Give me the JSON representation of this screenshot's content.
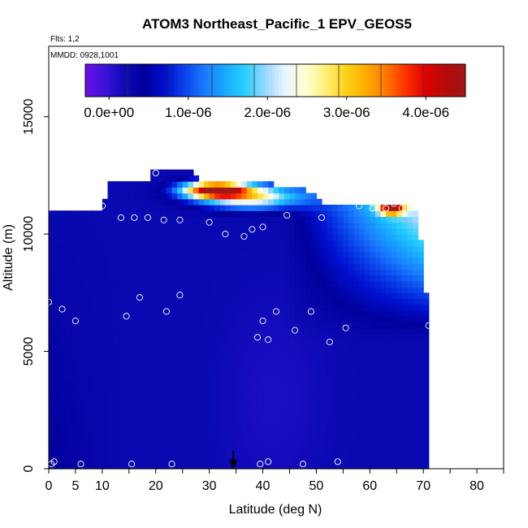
{
  "chart_data": {
    "type": "heatmap",
    "title": "ATOM3 Northeast_Pacific_1 EPV_GEOS5",
    "annotations": [
      "Flts: 1,2",
      "MMDD: 0928,1001"
    ],
    "xlabel": "Latitude (deg N)",
    "ylabel": "Altitude (m)",
    "xlim": [
      0,
      85
    ],
    "ylim": [
      0,
      18000
    ],
    "x_ticks": [
      0,
      5,
      10,
      20,
      30,
      40,
      50,
      60,
      70,
      80
    ],
    "y_ticks": [
      0,
      5000,
      10000,
      15000
    ],
    "colorbar": {
      "min": -3e-07,
      "max": 4.5e-06,
      "tick_values": [
        0,
        1e-06,
        2e-06,
        3e-06,
        4e-06
      ],
      "tick_labels": [
        "0.0e+00",
        "1.0e-06",
        "2.0e-06",
        "3.0e-06",
        "4.0e-06"
      ],
      "colors": [
        "#6a0fe6",
        "#3a12d6",
        "#0a0ab4",
        "#00009b",
        "#0010d0",
        "#0a44ea",
        "#1a7cff",
        "#17aaff",
        "#2ad0ff",
        "#9ad6ff",
        "#e8f6ff",
        "#ffffd2",
        "#fff07a",
        "#ffd21a",
        "#ffae00",
        "#ff7a00",
        "#ff3000",
        "#e00000",
        "#b40a0a",
        "#a01818"
      ]
    },
    "arrow_marker_latitude": 34.5,
    "observation_points": [
      [
        0,
        7100
      ],
      [
        0.5,
        200
      ],
      [
        1,
        300
      ],
      [
        2.5,
        6800
      ],
      [
        2.5,
        11900
      ],
      [
        4,
        11300
      ],
      [
        5,
        6300
      ],
      [
        6,
        200
      ],
      [
        6,
        11300
      ],
      [
        8,
        11300
      ],
      [
        10,
        11200
      ],
      [
        11,
        12400
      ],
      [
        13.5,
        10700
      ],
      [
        14.5,
        6500
      ],
      [
        15.5,
        200
      ],
      [
        16,
        10700
      ],
      [
        17,
        7300
      ],
      [
        18.5,
        10700
      ],
      [
        20,
        12600
      ],
      [
        21.5,
        10600
      ],
      [
        22,
        6700
      ],
      [
        23,
        200
      ],
      [
        24.5,
        7400
      ],
      [
        24.5,
        10600
      ],
      [
        29.5,
        12400
      ],
      [
        30,
        10500
      ],
      [
        33,
        10000
      ],
      [
        36.5,
        9900
      ],
      [
        38,
        10200
      ],
      [
        39,
        5600
      ],
      [
        39.5,
        200
      ],
      [
        40,
        6300
      ],
      [
        40,
        10300
      ],
      [
        41,
        300
      ],
      [
        41,
        5500
      ],
      [
        42.5,
        6700
      ],
      [
        44.5,
        10800
      ],
      [
        46,
        5900
      ],
      [
        47.5,
        200
      ],
      [
        49,
        6700
      ],
      [
        51,
        10700
      ],
      [
        52.5,
        5400
      ],
      [
        54,
        300
      ],
      [
        55.5,
        6000
      ],
      [
        58,
        11200
      ],
      [
        60.5,
        11100
      ],
      [
        63,
        11100
      ],
      [
        64.5,
        11300
      ],
      [
        66,
        11100
      ],
      [
        71,
        6100
      ]
    ]
  }
}
